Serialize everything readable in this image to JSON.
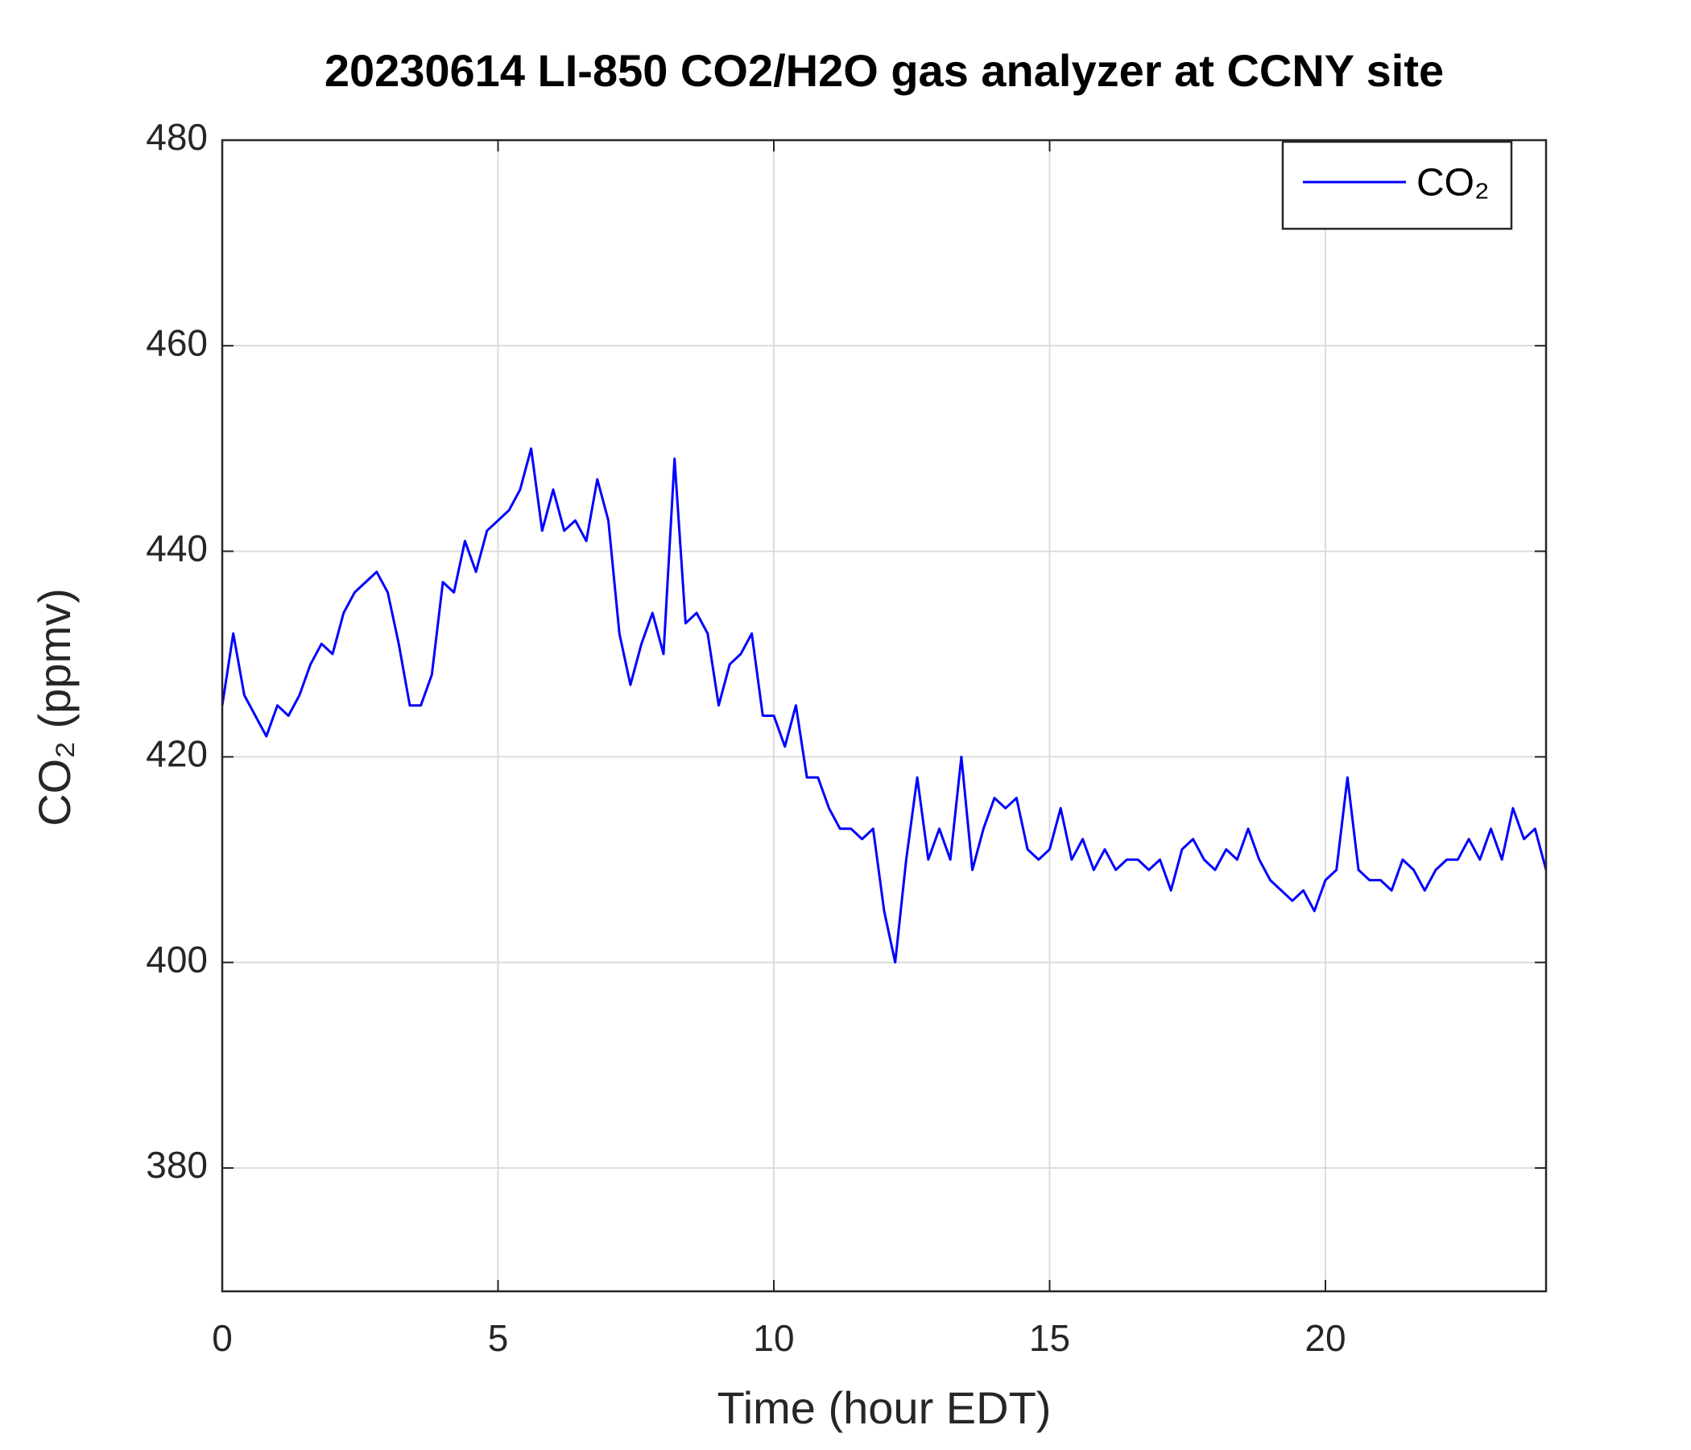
{
  "chart_data": {
    "type": "line",
    "title": "20230614 LI-850 CO2/H2O gas analyzer at CCNY site",
    "xlabel": "Time (hour EDT)",
    "ylabel": "CO₂ (ppmv)",
    "xlim": [
      0,
      24
    ],
    "xticks": [
      0,
      5,
      10,
      15,
      20
    ],
    "ylim": [
      368,
      480
    ],
    "yticks": [
      380,
      400,
      420,
      440,
      460,
      480
    ],
    "grid": true,
    "legend": "upper right",
    "x": [
      0,
      0.2,
      0.4,
      0.6,
      0.8,
      1,
      1.2,
      1.4,
      1.6,
      1.8,
      2,
      2.2,
      2.4,
      2.6,
      2.8,
      3,
      3.2,
      3.4,
      3.6,
      3.8,
      4,
      4.2,
      4.4,
      4.6,
      4.8,
      5,
      5.2,
      5.4,
      5.6,
      5.8,
      6,
      6.2,
      6.4,
      6.6,
      6.8,
      7,
      7.2,
      7.4,
      7.6,
      7.8,
      8,
      8.2,
      8.4,
      8.6,
      8.8,
      9,
      9.2,
      9.4,
      9.6,
      9.8,
      10,
      10.2,
      10.4,
      10.6,
      10.8,
      11,
      11.2,
      11.4,
      11.6,
      11.8,
      12,
      12.2,
      12.4,
      12.6,
      12.8,
      13,
      13.2,
      13.4,
      13.6,
      13.8,
      14,
      14.2,
      14.4,
      14.6,
      14.8,
      15,
      15.2,
      15.4,
      15.6,
      15.8,
      16,
      16.2,
      16.4,
      16.6,
      16.8,
      17,
      17.2,
      17.4,
      17.6,
      17.8,
      18,
      18.2,
      18.4,
      18.6,
      18.8,
      19,
      19.2,
      19.4,
      19.6,
      19.8,
      20,
      20.2,
      20.4,
      20.6,
      20.8,
      21,
      21.2,
      21.4,
      21.6,
      21.8,
      22,
      22.2,
      22.4,
      22.6,
      22.8,
      23,
      23.2,
      23.4,
      23.6,
      23.8,
      24
    ],
    "series": [
      {
        "name": "CO₂",
        "color": "#0000ff",
        "values": [
          425,
          432,
          426,
          424,
          422,
          425,
          424,
          426,
          429,
          431,
          430,
          434,
          436,
          437,
          438,
          436,
          431,
          425,
          425,
          428,
          437,
          436,
          441,
          438,
          442,
          443,
          444,
          446,
          450,
          442,
          446,
          442,
          443,
          441,
          447,
          443,
          432,
          427,
          431,
          434,
          430,
          449,
          433,
          434,
          432,
          425,
          429,
          430,
          432,
          424,
          424,
          421,
          425,
          418,
          418,
          415,
          413,
          413,
          412,
          413,
          405,
          400,
          410,
          418,
          410,
          413,
          410,
          420,
          409,
          413,
          416,
          415,
          416,
          411,
          410,
          411,
          415,
          410,
          412,
          409,
          411,
          409,
          410,
          410,
          409,
          410,
          407,
          411,
          412,
          410,
          409,
          411,
          410,
          413,
          410,
          408,
          407,
          406,
          407,
          405,
          408,
          409,
          418,
          409,
          408,
          408,
          407,
          410,
          409,
          407,
          409,
          410,
          410,
          412,
          410,
          413,
          410,
          415,
          412,
          413,
          409
        ]
      }
    ]
  }
}
